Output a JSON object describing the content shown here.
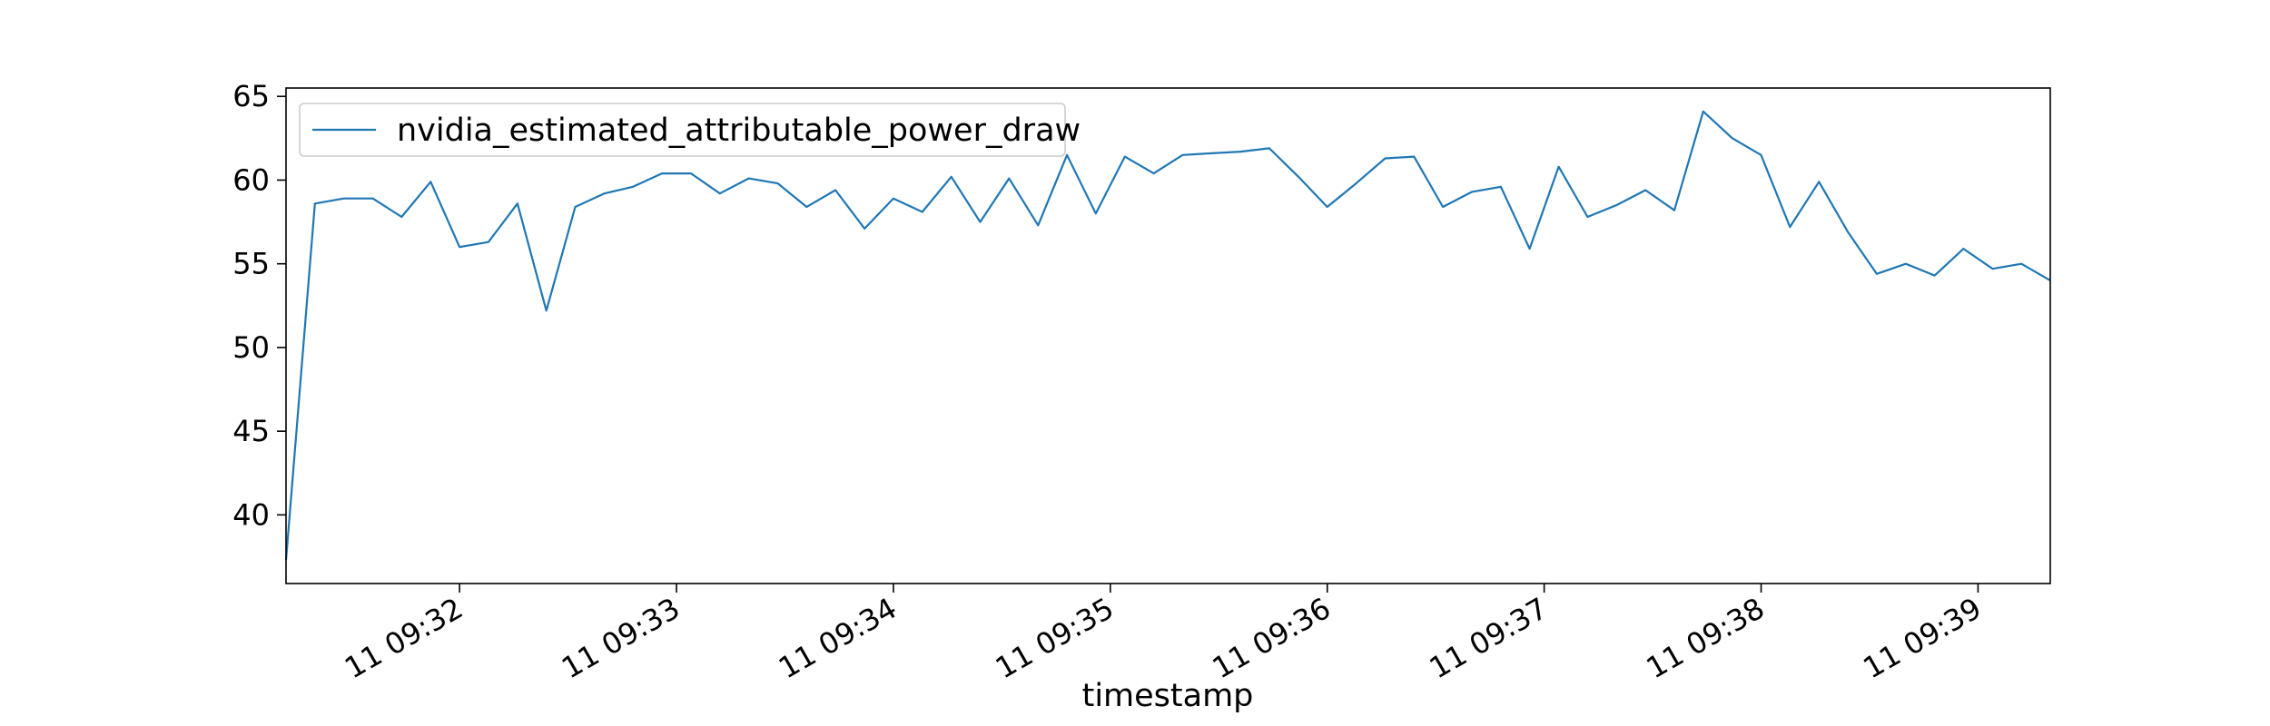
{
  "chart_data": {
    "type": "line",
    "title": "",
    "xlabel": "timestamp",
    "ylabel": "",
    "x_ticks": [
      "11 09:32",
      "11 09:33",
      "11 09:34",
      "11 09:35",
      "11 09:36",
      "11 09:37",
      "11 09:38",
      "11 09:39"
    ],
    "y_ticks": [
      "40",
      "45",
      "50",
      "55",
      "60",
      "65"
    ],
    "ylim": [
      35.9,
      65.5
    ],
    "xlim_minutes": [
      31.2,
      39.333
    ],
    "legend_position": "top-left",
    "grid": false,
    "series": [
      {
        "name": "nvidia_estimated_attributable_power_draw",
        "color": "#1f77b4",
        "x_minutes": [
          31.2,
          31.333,
          31.467,
          31.6,
          31.733,
          31.867,
          32.0,
          32.133,
          32.267,
          32.4,
          32.533,
          32.667,
          32.8,
          32.933,
          33.067,
          33.2,
          33.333,
          33.467,
          33.6,
          33.733,
          33.867,
          34.0,
          34.133,
          34.267,
          34.4,
          34.533,
          34.667,
          34.8,
          34.933,
          35.067,
          35.2,
          35.333,
          35.467,
          35.6,
          35.733,
          35.867,
          36.0,
          36.133,
          36.267,
          36.4,
          36.533,
          36.667,
          36.8,
          36.933,
          37.067,
          37.2,
          37.333,
          37.467,
          37.6,
          37.733,
          37.867,
          38.0,
          38.133,
          38.267,
          38.4,
          38.533,
          38.667,
          38.8,
          38.933,
          39.067,
          39.2,
          39.333
        ],
        "values": [
          37.3,
          58.6,
          58.9,
          58.9,
          57.8,
          59.9,
          56.0,
          56.3,
          58.6,
          52.2,
          58.4,
          59.2,
          59.6,
          60.4,
          60.4,
          59.2,
          60.1,
          59.8,
          58.4,
          59.4,
          57.1,
          58.9,
          58.1,
          60.2,
          57.5,
          60.1,
          57.3,
          61.5,
          58.0,
          61.4,
          60.4,
          61.5,
          61.6,
          61.7,
          61.9,
          60.2,
          58.4,
          59.8,
          61.3,
          61.4,
          58.4,
          59.3,
          59.6,
          55.9,
          60.8,
          57.8,
          58.5,
          59.4,
          58.2,
          64.1,
          62.5,
          61.5,
          57.2,
          59.9,
          56.9,
          54.4,
          55.0,
          54.3,
          55.9,
          54.7,
          55.0,
          54.0
        ]
      }
    ]
  }
}
